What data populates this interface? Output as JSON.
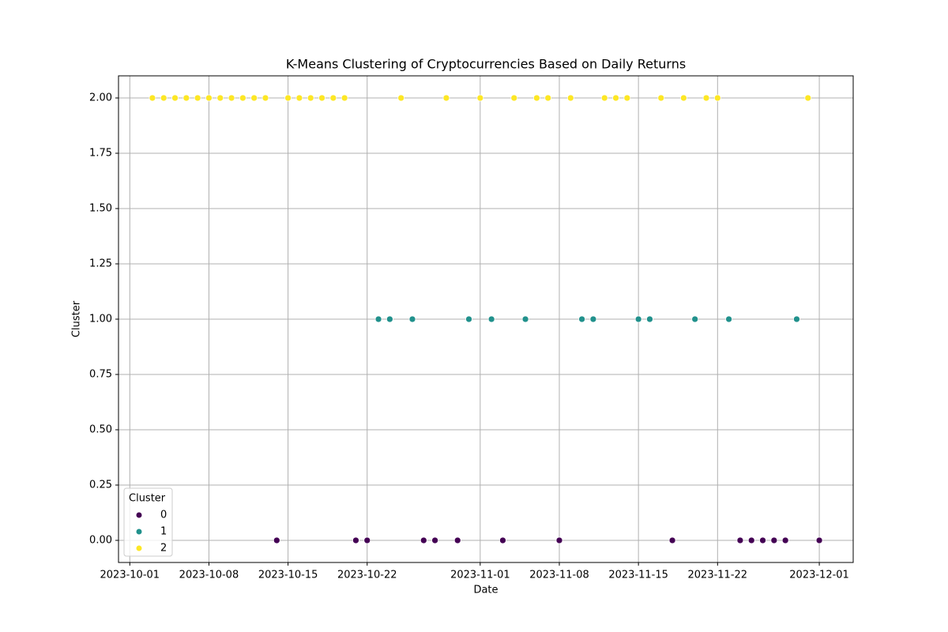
{
  "chart_data": {
    "type": "scatter",
    "title": "K-Means Clustering of Cryptocurrencies Based on Daily Returns",
    "x_label": "Date",
    "y_label": "Cluster",
    "legend_title": "Cluster",
    "legend_position": "lower left",
    "grid": true,
    "xlim": [
      "2023-09-30",
      "2023-12-04"
    ],
    "xticks": [
      "2023-10-01",
      "2023-10-08",
      "2023-10-15",
      "2023-10-22",
      "2023-11-01",
      "2023-11-08",
      "2023-11-15",
      "2023-11-22",
      "2023-12-01"
    ],
    "ylim": [
      -0.1,
      2.1
    ],
    "yticks": [
      {
        "value": 0,
        "label": "0.00"
      },
      {
        "value": 0.25,
        "label": "0.25"
      },
      {
        "value": 0.5,
        "label": "0.50"
      },
      {
        "value": 0.75,
        "label": "0.75"
      },
      {
        "value": 1,
        "label": "1.00"
      },
      {
        "value": 1.25,
        "label": "1.25"
      },
      {
        "value": 1.5,
        "label": "1.50"
      },
      {
        "value": 1.75,
        "label": "1.75"
      },
      {
        "value": 2,
        "label": "2.00"
      }
    ],
    "series": [
      {
        "name": "0",
        "color": "#440154",
        "x": [
          "2023-10-14",
          "2023-10-21",
          "2023-10-22",
          "2023-10-27",
          "2023-10-28",
          "2023-10-30",
          "2023-11-03",
          "2023-11-08",
          "2023-11-18",
          "2023-11-24",
          "2023-11-25",
          "2023-11-26",
          "2023-11-27",
          "2023-11-28",
          "2023-12-01"
        ],
        "values": [
          0,
          0,
          0,
          0,
          0,
          0,
          0,
          0,
          0,
          0,
          0,
          0,
          0,
          0,
          0
        ]
      },
      {
        "name": "1",
        "color": "#21918c",
        "x": [
          "2023-10-23",
          "2023-10-24",
          "2023-10-26",
          "2023-10-31",
          "2023-11-02",
          "2023-11-05",
          "2023-11-10",
          "2023-11-11",
          "2023-11-15",
          "2023-11-16",
          "2023-11-20",
          "2023-11-23",
          "2023-11-29"
        ],
        "values": [
          1,
          1,
          1,
          1,
          1,
          1,
          1,
          1,
          1,
          1,
          1,
          1,
          1
        ]
      },
      {
        "name": "2",
        "color": "#fde725",
        "x": [
          "2023-10-03",
          "2023-10-04",
          "2023-10-05",
          "2023-10-06",
          "2023-10-07",
          "2023-10-08",
          "2023-10-09",
          "2023-10-10",
          "2023-10-11",
          "2023-10-12",
          "2023-10-13",
          "2023-10-15",
          "2023-10-16",
          "2023-10-17",
          "2023-10-18",
          "2023-10-19",
          "2023-10-20",
          "2023-10-25",
          "2023-10-29",
          "2023-11-01",
          "2023-11-04",
          "2023-11-06",
          "2023-11-07",
          "2023-11-09",
          "2023-11-12",
          "2023-11-13",
          "2023-11-14",
          "2023-11-17",
          "2023-11-19",
          "2023-11-21",
          "2023-11-22",
          "2023-11-30"
        ],
        "values": [
          2,
          2,
          2,
          2,
          2,
          2,
          2,
          2,
          2,
          2,
          2,
          2,
          2,
          2,
          2,
          2,
          2,
          2,
          2,
          2,
          2,
          2,
          2,
          2,
          2,
          2,
          2,
          2,
          2,
          2,
          2,
          2
        ]
      }
    ]
  }
}
